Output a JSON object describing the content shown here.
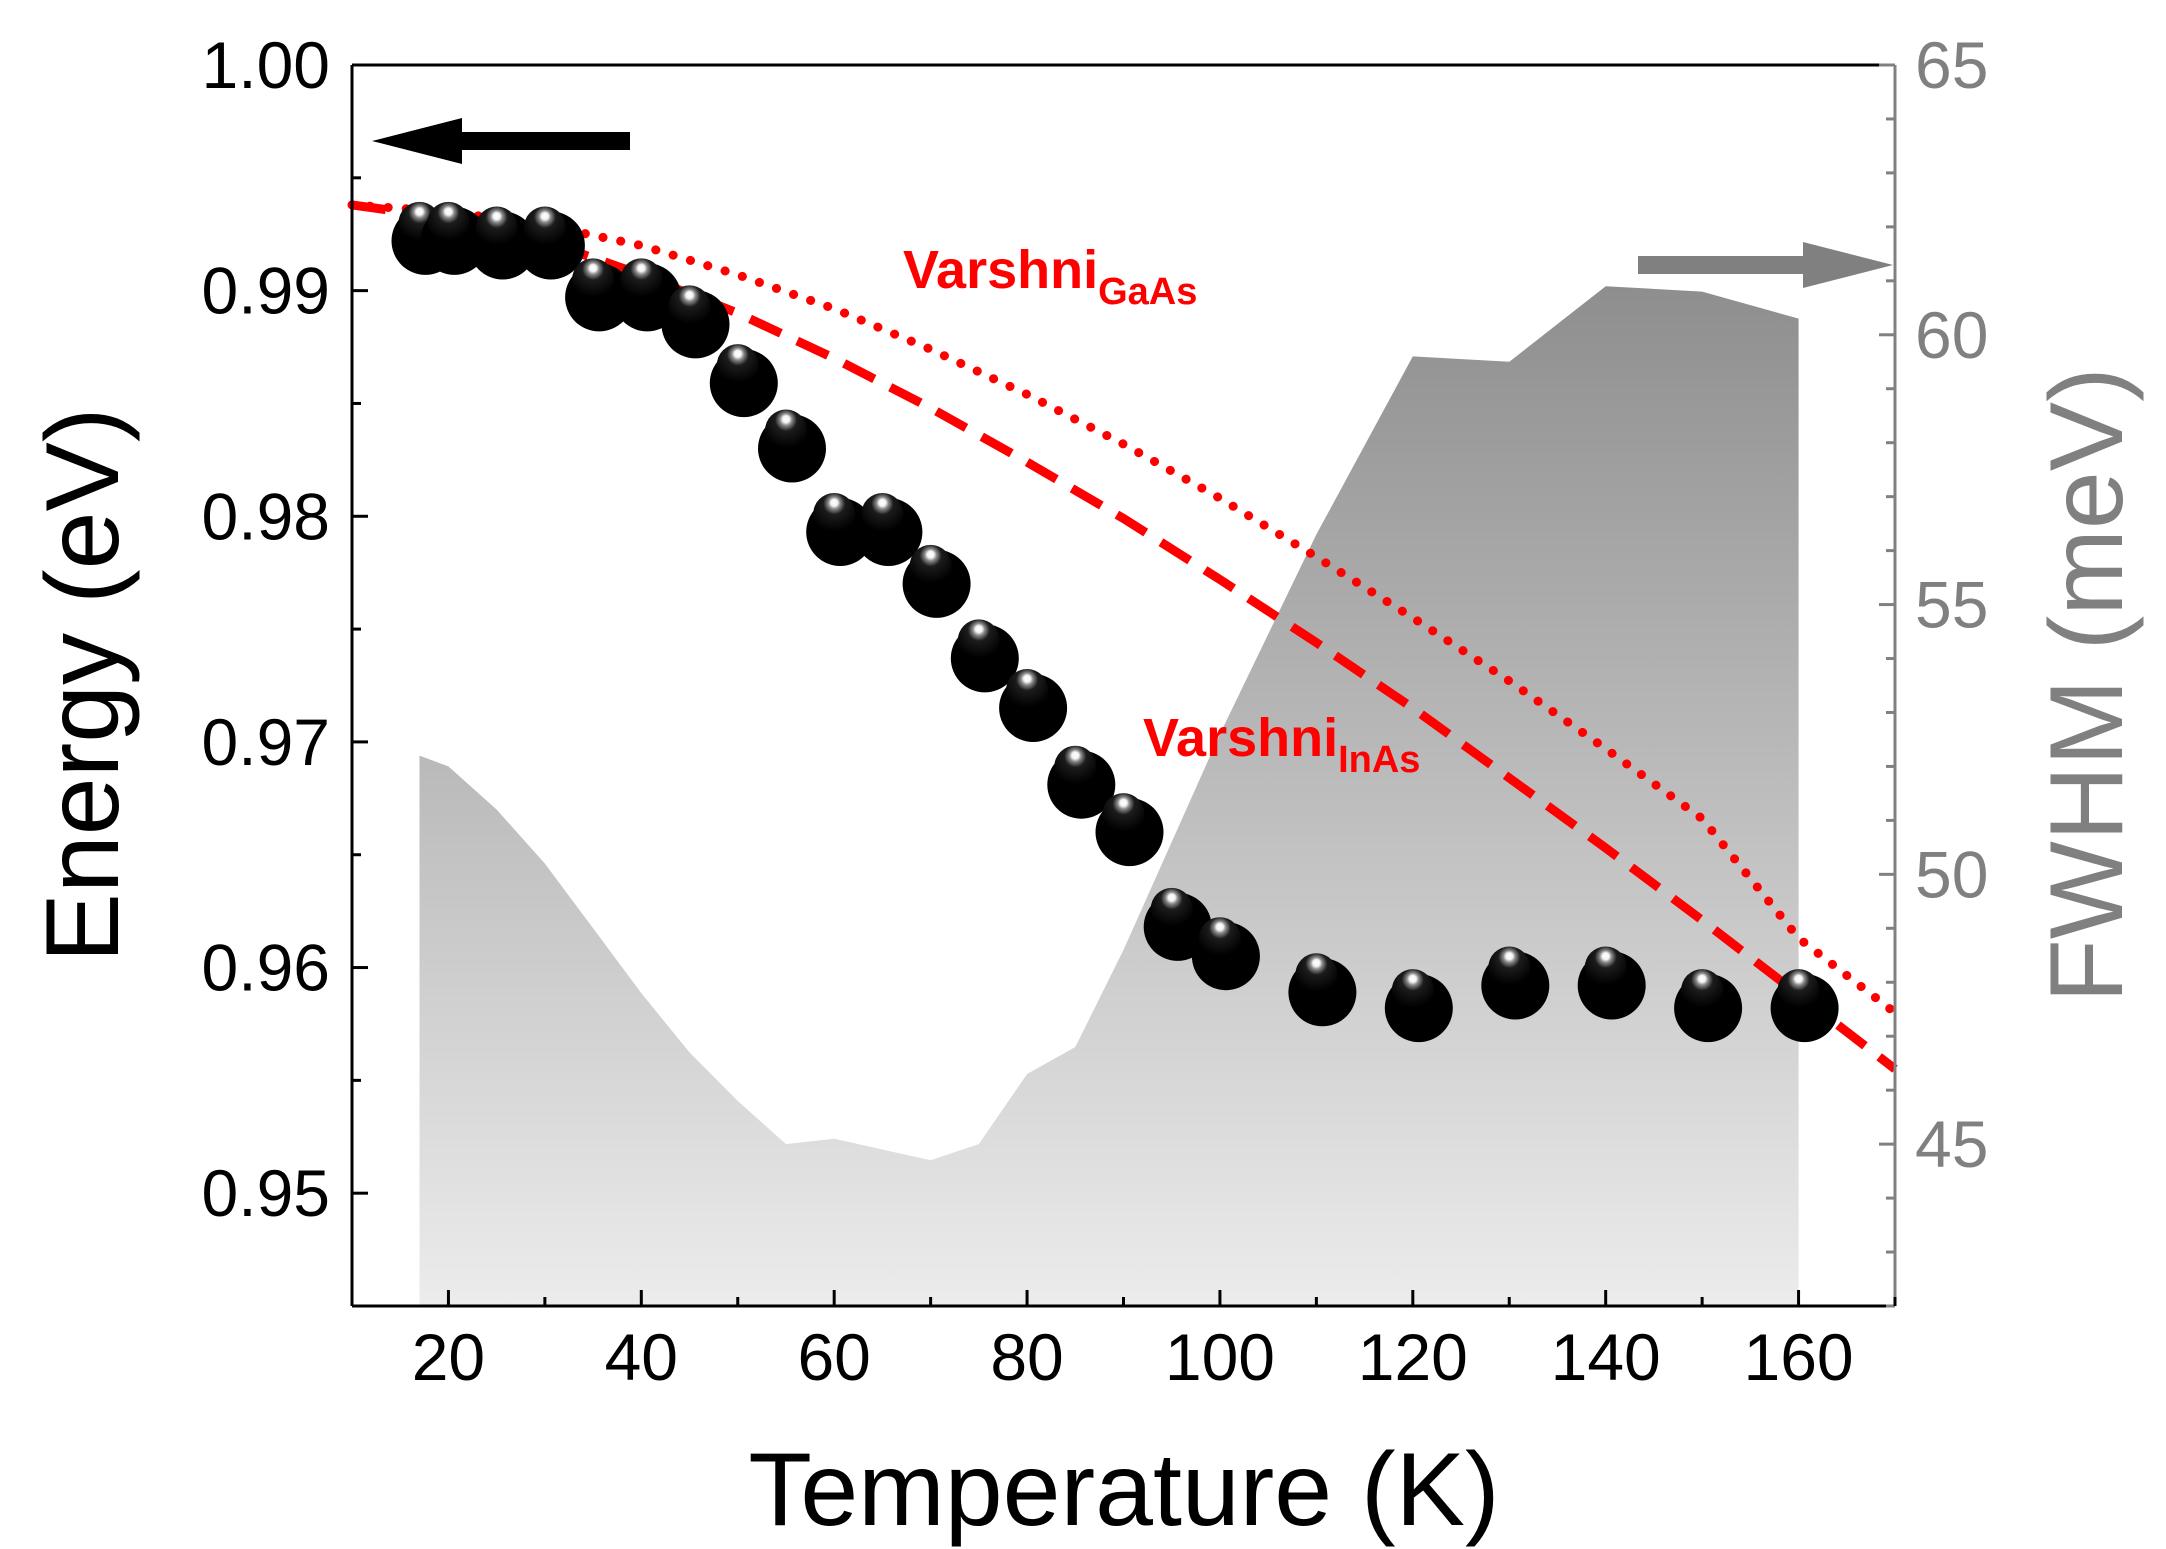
{
  "chart_data": {
    "type": "scatter",
    "xlabel": "Temperature (K)",
    "ylabel_left": "Energy (eV)",
    "ylabel_right": "FWHM (meV)",
    "xlim": [
      10,
      170
    ],
    "ylim_left": [
      0.945,
      1.0
    ],
    "ylim_right": [
      42,
      65
    ],
    "x_ticks": [
      20,
      40,
      60,
      80,
      100,
      120,
      140,
      160
    ],
    "x_tick_labels": [
      "20",
      "40",
      "60",
      "80",
      "100",
      "120",
      "140",
      "160"
    ],
    "y_left_ticks": [
      0.95,
      0.96,
      0.97,
      0.98,
      0.99,
      1.0
    ],
    "y_left_tick_labels": [
      "0.95",
      "0.96",
      "0.97",
      "0.98",
      "0.99",
      "1.00"
    ],
    "y_right_ticks": [
      45,
      50,
      55,
      60,
      65
    ],
    "y_right_tick_labels": [
      "45",
      "50",
      "55",
      "60",
      "65"
    ],
    "series": [
      {
        "name": "Energy",
        "axis": "left",
        "style": "spheres",
        "color": "#000000",
        "x": [
          17,
          20,
          25,
          30,
          35,
          40,
          45,
          50,
          55,
          60,
          65,
          70,
          75,
          80,
          85,
          90,
          95,
          100,
          110,
          120,
          130,
          140,
          150,
          160
        ],
        "y": [
          0.993,
          0.993,
          0.9928,
          0.9928,
          0.9905,
          0.9905,
          0.9893,
          0.9867,
          0.9838,
          0.9801,
          0.9801,
          0.9778,
          0.9745,
          0.9723,
          0.9689,
          0.9668,
          0.9626,
          0.9613,
          0.9597,
          0.959,
          0.96,
          0.96,
          0.959,
          0.959
        ]
      },
      {
        "name": "FWHM",
        "axis": "right",
        "style": "shaded-area",
        "color": "#a0a0a0",
        "x": [
          17,
          20,
          25,
          30,
          35,
          40,
          45,
          50,
          55,
          60,
          65,
          70,
          75,
          80,
          85,
          90,
          95,
          100,
          110,
          120,
          130,
          140,
          150,
          160
        ],
        "y": [
          52.2,
          52.0,
          51.2,
          50.2,
          49.0,
          47.8,
          46.7,
          45.8,
          45.0,
          45.1,
          44.9,
          44.7,
          45.0,
          46.3,
          46.8,
          48.6,
          50.6,
          52.6,
          56.3,
          59.6,
          59.5,
          60.9,
          60.8,
          60.3
        ]
      },
      {
        "name": "Varshni_InAs",
        "axis": "left",
        "style": "dashed",
        "color": "#ff0000",
        "x": [
          10,
          20,
          30,
          40,
          50,
          60,
          70,
          80,
          90,
          100,
          110,
          120,
          130,
          140,
          150,
          160,
          170
        ],
        "y": [
          0.9938,
          0.9932,
          0.9922,
          0.9907,
          0.989,
          0.987,
          0.9848,
          0.9824,
          0.9799,
          0.9772,
          0.9744,
          0.9715,
          0.9684,
          0.9653,
          0.9621,
          0.9588,
          0.9555
        ]
      },
      {
        "name": "Varshni_GaAs",
        "axis": "left",
        "style": "dotted",
        "color": "#ff0000",
        "x": [
          10,
          20,
          30,
          40,
          50,
          60,
          70,
          80,
          90,
          100,
          110,
          120,
          130,
          140,
          150,
          160,
          170
        ],
        "y": [
          0.9938,
          0.9935,
          0.9929,
          0.992,
          0.9907,
          0.9892,
          0.9874,
          0.9854,
          0.9832,
          0.9808,
          0.9782,
          0.9755,
          0.9727,
          0.9697,
          0.9666,
          0.9613,
          0.958
        ]
      }
    ],
    "annotations": [
      {
        "id": "gaas",
        "main": "Varshni",
        "sub": "GaAs",
        "color": "#ff0000"
      },
      {
        "id": "inas",
        "main": "Varshni",
        "sub": "InAs",
        "color": "#ff0000"
      }
    ],
    "arrows": [
      {
        "id": "left-axis-arrow",
        "direction": "left",
        "color": "#000000"
      },
      {
        "id": "right-axis-arrow",
        "direction": "right",
        "color": "#808080"
      }
    ],
    "colors": {
      "axis": "#000000",
      "right_axis": "#808080",
      "varshni": "#ff0000"
    }
  }
}
